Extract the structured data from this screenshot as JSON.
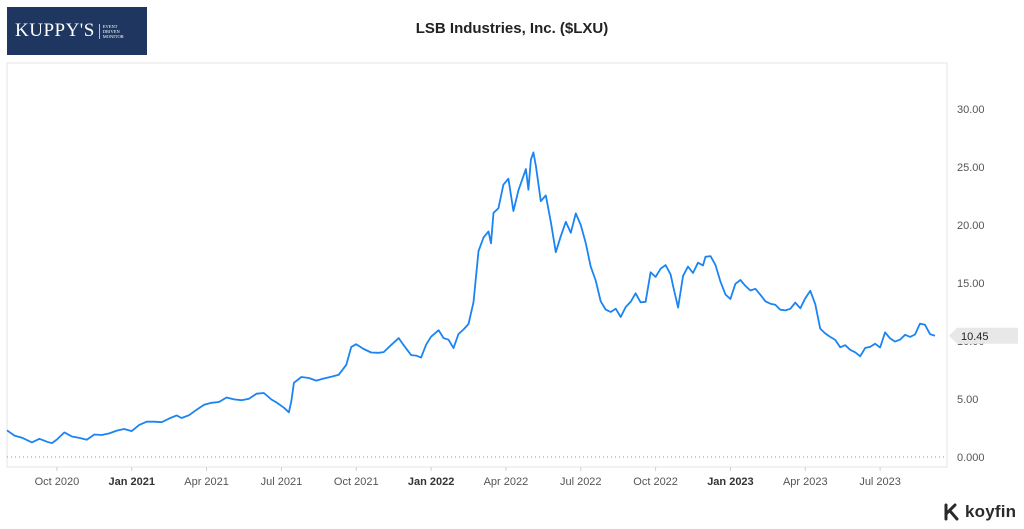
{
  "logo": {
    "name": "KUPPY'S",
    "tagline": [
      "EVENT",
      "DRIVEN",
      "MONITOR"
    ]
  },
  "brand": {
    "name": "koyfin"
  },
  "colors": {
    "line": "#1a84f2",
    "logo_bg": "#1f3760",
    "axis_text": "#555555",
    "badge": "#e8e8e8"
  },
  "chart_data": {
    "type": "line",
    "title": "LSB Industries, Inc. ($LXU)",
    "xlabel": "",
    "ylabel": "",
    "x_unit": "months since 2020-08-01",
    "xlim": [
      0,
      37.2
    ],
    "ylim": [
      0,
      33
    ],
    "y_ticks": [
      0,
      5,
      10,
      15,
      20,
      25,
      30
    ],
    "y_tick_labels": [
      "0.000",
      "5.00",
      "10.00",
      "15.00",
      "20.00",
      "25.00",
      "30.00"
    ],
    "x_ticks": [
      {
        "label": "Oct 2020",
        "x": 2,
        "bold": false
      },
      {
        "label": "Jan 2021",
        "x": 5,
        "bold": true
      },
      {
        "label": "Apr 2021",
        "x": 8,
        "bold": false
      },
      {
        "label": "Jul 2021",
        "x": 11,
        "bold": false
      },
      {
        "label": "Oct 2021",
        "x": 14,
        "bold": false
      },
      {
        "label": "Jan 2022",
        "x": 17,
        "bold": true
      },
      {
        "label": "Apr 2022",
        "x": 20,
        "bold": false
      },
      {
        "label": "Jul 2022",
        "x": 23,
        "bold": false
      },
      {
        "label": "Oct 2022",
        "x": 26,
        "bold": false
      },
      {
        "label": "Jan 2023",
        "x": 29,
        "bold": true
      },
      {
        "label": "Apr 2023",
        "x": 32,
        "bold": false
      },
      {
        "label": "Jul 2023",
        "x": 35,
        "bold": false
      }
    ],
    "last_value_label": "10.45",
    "grid": false,
    "series": [
      {
        "name": "LXU",
        "points": [
          [
            0.0,
            2.2
          ],
          [
            0.3,
            1.8
          ],
          [
            0.6,
            1.6
          ],
          [
            1.0,
            1.5
          ],
          [
            1.3,
            1.4
          ],
          [
            1.6,
            1.3
          ],
          [
            1.8,
            1.2
          ],
          [
            2.0,
            1.7
          ],
          [
            2.3,
            1.9
          ],
          [
            2.6,
            1.8
          ],
          [
            2.9,
            1.7
          ],
          [
            3.2,
            1.6
          ],
          [
            3.5,
            1.7
          ],
          [
            3.8,
            2.0
          ],
          [
            4.1,
            2.1
          ],
          [
            4.4,
            2.3
          ],
          [
            4.7,
            2.2
          ],
          [
            5.0,
            2.4
          ],
          [
            5.3,
            2.8
          ],
          [
            5.6,
            3.0
          ],
          [
            5.9,
            2.9
          ],
          [
            6.2,
            3.2
          ],
          [
            6.5,
            3.3
          ],
          [
            6.8,
            3.5
          ],
          [
            7.0,
            3.3
          ],
          [
            7.3,
            3.8
          ],
          [
            7.6,
            4.0
          ],
          [
            7.9,
            4.4
          ],
          [
            8.2,
            4.7
          ],
          [
            8.5,
            4.9
          ],
          [
            8.8,
            5.0
          ],
          [
            9.1,
            4.9
          ],
          [
            9.4,
            5.0
          ],
          [
            9.7,
            5.1
          ],
          [
            10.0,
            5.3
          ],
          [
            10.3,
            5.5
          ],
          [
            10.6,
            5.1
          ],
          [
            10.8,
            4.7
          ],
          [
            11.1,
            4.1
          ],
          [
            11.3,
            3.9
          ],
          [
            11.4,
            5.0
          ],
          [
            11.5,
            6.3
          ],
          [
            11.8,
            6.8
          ],
          [
            12.1,
            6.9
          ],
          [
            12.4,
            6.7
          ],
          [
            12.7,
            6.6
          ],
          [
            13.0,
            6.9
          ],
          [
            13.3,
            7.2
          ],
          [
            13.6,
            8.0
          ],
          [
            13.8,
            9.3
          ],
          [
            14.0,
            9.8
          ],
          [
            14.3,
            9.4
          ],
          [
            14.6,
            9.0
          ],
          [
            14.9,
            8.8
          ],
          [
            15.1,
            9.2
          ],
          [
            15.4,
            9.7
          ],
          [
            15.7,
            10.2
          ],
          [
            15.9,
            9.5
          ],
          [
            16.2,
            9.0
          ],
          [
            16.4,
            8.7
          ],
          [
            16.6,
            8.5
          ],
          [
            16.8,
            9.6
          ],
          [
            17.0,
            10.6
          ],
          [
            17.3,
            10.8
          ],
          [
            17.5,
            10.2
          ],
          [
            17.7,
            10.1
          ],
          [
            17.9,
            9.6
          ],
          [
            18.1,
            10.4
          ],
          [
            18.3,
            11.0
          ],
          [
            18.5,
            11.5
          ],
          [
            18.7,
            13.5
          ],
          [
            18.9,
            17.5
          ],
          [
            19.1,
            19.0
          ],
          [
            19.3,
            19.5
          ],
          [
            19.4,
            18.5
          ],
          [
            19.5,
            20.8
          ],
          [
            19.7,
            21.6
          ],
          [
            19.9,
            23.5
          ],
          [
            20.1,
            24.0
          ],
          [
            20.3,
            21.0
          ],
          [
            20.5,
            23.2
          ],
          [
            20.8,
            24.8
          ],
          [
            20.9,
            23.0
          ],
          [
            21.0,
            25.5
          ],
          [
            21.1,
            26.5
          ],
          [
            21.2,
            25.0
          ],
          [
            21.4,
            22.0
          ],
          [
            21.6,
            22.5
          ],
          [
            21.8,
            20.5
          ],
          [
            22.0,
            17.5
          ],
          [
            22.2,
            19.0
          ],
          [
            22.4,
            20.3
          ],
          [
            22.6,
            19.5
          ],
          [
            22.8,
            20.8
          ],
          [
            23.0,
            20.0
          ],
          [
            23.2,
            18.5
          ],
          [
            23.4,
            16.5
          ],
          [
            23.6,
            15.0
          ],
          [
            23.8,
            13.5
          ],
          [
            24.0,
            12.8
          ],
          [
            24.2,
            12.5
          ],
          [
            24.4,
            12.6
          ],
          [
            24.6,
            12.2
          ],
          [
            24.8,
            13.0
          ],
          [
            25.0,
            13.3
          ],
          [
            25.2,
            14.0
          ],
          [
            25.4,
            13.5
          ],
          [
            25.6,
            13.4
          ],
          [
            25.8,
            15.8
          ],
          [
            26.0,
            15.5
          ],
          [
            26.2,
            16.4
          ],
          [
            26.4,
            16.5
          ],
          [
            26.6,
            15.6
          ],
          [
            26.7,
            14.8
          ],
          [
            26.9,
            13.0
          ],
          [
            27.1,
            15.5
          ],
          [
            27.3,
            16.3
          ],
          [
            27.5,
            16.0
          ],
          [
            27.7,
            16.8
          ],
          [
            27.9,
            16.4
          ],
          [
            28.0,
            17.2
          ],
          [
            28.2,
            17.5
          ],
          [
            28.4,
            16.5
          ],
          [
            28.6,
            15.0
          ],
          [
            28.8,
            14.0
          ],
          [
            29.0,
            13.8
          ],
          [
            29.2,
            14.8
          ],
          [
            29.4,
            15.2
          ],
          [
            29.6,
            14.8
          ],
          [
            29.8,
            14.5
          ],
          [
            30.0,
            14.3
          ],
          [
            30.2,
            14.0
          ],
          [
            30.4,
            13.5
          ],
          [
            30.6,
            13.3
          ],
          [
            30.8,
            12.9
          ],
          [
            31.0,
            12.8
          ],
          [
            31.2,
            12.7
          ],
          [
            31.4,
            12.8
          ],
          [
            31.6,
            13.1
          ],
          [
            31.8,
            13.0
          ],
          [
            32.0,
            13.7
          ],
          [
            32.2,
            14.3
          ],
          [
            32.4,
            13.0
          ],
          [
            32.6,
            11.3
          ],
          [
            32.8,
            10.6
          ],
          [
            33.0,
            10.3
          ],
          [
            33.2,
            10.0
          ],
          [
            33.4,
            9.7
          ],
          [
            33.6,
            9.5
          ],
          [
            33.8,
            9.2
          ],
          [
            34.0,
            9.0
          ],
          [
            34.2,
            8.9
          ],
          [
            34.4,
            9.2
          ],
          [
            34.6,
            9.5
          ],
          [
            34.8,
            9.8
          ],
          [
            35.0,
            9.6
          ],
          [
            35.2,
            10.5
          ],
          [
            35.4,
            10.3
          ],
          [
            35.6,
            10.0
          ],
          [
            35.8,
            10.2
          ],
          [
            36.0,
            10.3
          ],
          [
            36.2,
            10.5
          ],
          [
            36.4,
            10.6
          ],
          [
            36.6,
            11.5
          ],
          [
            36.8,
            11.2
          ],
          [
            37.0,
            10.8
          ],
          [
            37.2,
            10.45
          ]
        ]
      }
    ]
  }
}
